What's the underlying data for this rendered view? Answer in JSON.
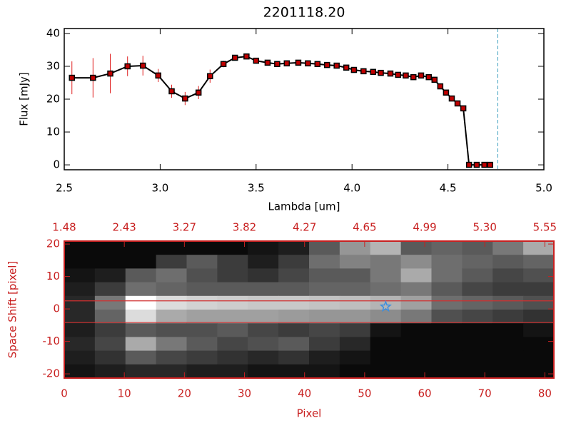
{
  "chart_data": [
    {
      "type": "line",
      "title": "2201118.20",
      "xlabel": "Lambda [um]",
      "ylabel": "Flux [mJy]",
      "xlim": [
        2.5,
        5.0
      ],
      "ylim": [
        -1.5,
        41.5
      ],
      "xticks": [
        2.5,
        {
          "value": 3,
          "label": "3.0"
        },
        3.5,
        {
          "value": 4,
          "label": "4.0"
        },
        4.5,
        {
          "value": 5,
          "label": "5.0"
        }
      ],
      "yticks": [
        0,
        10,
        20,
        30,
        40
      ],
      "x": [
        2.54,
        2.65,
        2.74,
        2.83,
        2.91,
        2.99,
        3.06,
        3.13,
        3.2,
        3.26,
        3.33,
        3.39,
        3.45,
        3.5,
        3.56,
        3.61,
        3.66,
        3.72,
        3.77,
        3.82,
        3.87,
        3.92,
        3.97,
        4.01,
        4.06,
        4.11,
        4.15,
        4.2,
        4.24,
        4.28,
        4.32,
        4.36,
        4.4,
        4.43,
        4.46,
        4.49,
        4.52,
        4.55,
        4.58,
        4.61,
        4.65,
        4.69,
        4.72
      ],
      "series": [
        {
          "color": "#000000",
          "marker_color": "#c00000",
          "error_color": "#e02020",
          "values": [
            26.5,
            26.5,
            27.8,
            30,
            30.2,
            27.2,
            22.4,
            20.2,
            22,
            27,
            30.7,
            32.6,
            33,
            31.7,
            31.1,
            30.7,
            30.9,
            31.1,
            30.9,
            30.7,
            30.4,
            30.2,
            29.6,
            28.9,
            28.5,
            28.3,
            28,
            27.8,
            27.4,
            27.2,
            26.7,
            27.2,
            26.7,
            25.9,
            23.9,
            22,
            20.2,
            18.7,
            17.2,
            0,
            0,
            0,
            0
          ],
          "errors": [
            5,
            6,
            6,
            3,
            3,
            2,
            2,
            2,
            2,
            2,
            1,
            0.5,
            0.5,
            0.5,
            0.5,
            0.5,
            0.5,
            0.5,
            0.5,
            0.5,
            0.5,
            0.5,
            0.5,
            0.5,
            0.5,
            0.5,
            0.5,
            0.5,
            0.5,
            0.5,
            0.5,
            0.5,
            0.5,
            0.5,
            0.5,
            0.5,
            0.5,
            0.5,
            0.5,
            0,
            0,
            0,
            0
          ]
        }
      ],
      "vline": 4.76,
      "vline_color": "#40a0c0"
    },
    {
      "type": "heatmap",
      "xlabel": "Pixel",
      "ylabel": "Space Shift [pixel]",
      "axis_color": "#c82020",
      "xlim": [
        0,
        81.5
      ],
      "ylim": [
        -21.3,
        20.9
      ],
      "xticks": [
        0,
        10,
        20,
        30,
        40,
        50,
        60,
        70,
        80
      ],
      "x2ticks": [
        {
          "value": 0,
          "label": "1.48"
        },
        {
          "value": 10,
          "label": "2.43"
        },
        {
          "value": 20,
          "label": "3.27"
        },
        {
          "value": 30,
          "label": "3.82"
        },
        {
          "value": 40,
          "label": "4.27"
        },
        {
          "value": 50,
          "label": "4.65"
        },
        {
          "value": 60,
          "label": "4.99"
        },
        {
          "value": 70,
          "label": "5.30"
        },
        {
          "value": 80,
          "label": "5.55"
        }
      ],
      "yticks": [
        -20,
        -10,
        0,
        10,
        20
      ],
      "z": [
        [
          10,
          10,
          10,
          10,
          10,
          10,
          20,
          30,
          90,
          150,
          180,
          90,
          100,
          90,
          120,
          170
        ],
        [
          10,
          10,
          10,
          60,
          90,
          60,
          30,
          60,
          110,
          130,
          120,
          140,
          110,
          100,
          90,
          100
        ],
        [
          20,
          30,
          90,
          110,
          80,
          60,
          50,
          70,
          90,
          90,
          120,
          170,
          110,
          90,
          70,
          80
        ],
        [
          30,
          60,
          110,
          100,
          90,
          90,
          90,
          90,
          100,
          100,
          110,
          120,
          90,
          70,
          60,
          60
        ],
        [
          40,
          120,
          255,
          220,
          210,
          205,
          200,
          200,
          195,
          190,
          180,
          160,
          110,
          100,
          90,
          80
        ],
        [
          40,
          100,
          220,
          170,
          160,
          160,
          160,
          155,
          150,
          150,
          140,
          120,
          80,
          70,
          60,
          50
        ],
        [
          30,
          60,
          90,
          80,
          80,
          90,
          70,
          60,
          70,
          60,
          20,
          10,
          10,
          10,
          10,
          20
        ],
        [
          40,
          70,
          170,
          120,
          90,
          70,
          80,
          90,
          60,
          40,
          10,
          10,
          10,
          10,
          10,
          10
        ],
        [
          30,
          50,
          90,
          70,
          60,
          50,
          40,
          50,
          30,
          20,
          10,
          10,
          10,
          10,
          10,
          10
        ],
        [
          20,
          30,
          40,
          40,
          30,
          30,
          20,
          20,
          20,
          10,
          10,
          10,
          10,
          10,
          10,
          10
        ]
      ],
      "aperture": [
        2.5,
        -4.2
      ],
      "aperture_color": "#d03030",
      "marker": {
        "x": 53.5,
        "y": 0.7
      },
      "marker_color": "#3a8ee0"
    }
  ]
}
